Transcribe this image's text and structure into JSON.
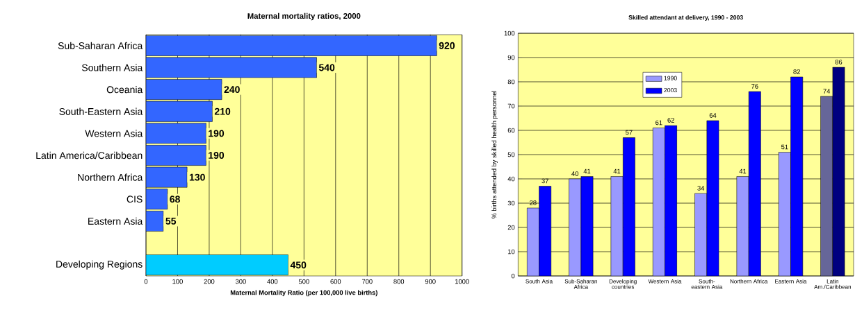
{
  "chart_data": [
    {
      "type": "bar",
      "orientation": "horizontal",
      "title": "Maternal mortality ratios, 2000",
      "xlabel": "Maternal Mortality Ratio (per 100,000 live births)",
      "categories": [
        "Sub-Saharan Africa",
        "Southern Asia",
        "Oceania",
        "South-Eastern Asia",
        "Western Asia",
        "Latin America/Caribbean",
        "Northern Africa",
        "CIS",
        "Eastern Asia",
        null,
        "Developing Regions"
      ],
      "values": [
        920,
        540,
        240,
        210,
        190,
        190,
        130,
        68,
        55,
        null,
        450
      ],
      "colors": [
        "#3366ff",
        "#3366ff",
        "#3366ff",
        "#3366ff",
        "#3366ff",
        "#3366ff",
        "#3366ff",
        "#3366ff",
        "#3366ff",
        null,
        "#00ccff"
      ],
      "xlim": [
        0,
        1000
      ],
      "xticks": [
        0,
        100,
        200,
        300,
        400,
        500,
        600,
        700,
        800,
        900,
        1000
      ],
      "grid": "x",
      "data_labels": true
    },
    {
      "type": "bar",
      "title": "Skilled attendant at delivery, 1990 - 2003",
      "ylabel": "% births attended by skilled health personnel",
      "categories": [
        "South Asia",
        "Sub-Saharan Africa",
        "Developing countries",
        "Western Asia",
        "South-eastern Asia",
        "Northern Africa",
        "Eastern Asia",
        "Latin Am./Caribbean"
      ],
      "series": [
        {
          "name": "1990",
          "color": "#9999ff",
          "colors": [
            "#9999ff",
            "#9999ff",
            "#9999ff",
            "#9999ff",
            "#9999ff",
            "#9999ff",
            "#9999ff",
            "#666699"
          ],
          "values": [
            28,
            40,
            41,
            61,
            34,
            41,
            51,
            74
          ]
        },
        {
          "name": "2003",
          "color": "#0000ff",
          "colors": [
            "#0000ff",
            "#0000ff",
            "#0000ff",
            "#0000ff",
            "#0000ff",
            "#0000ff",
            "#0000ff",
            "#000080"
          ],
          "values": [
            37,
            41,
            57,
            62,
            64,
            76,
            82,
            86
          ]
        }
      ],
      "ylim": [
        0,
        100
      ],
      "yticks": [
        0,
        10,
        20,
        30,
        40,
        50,
        60,
        70,
        80,
        90,
        100
      ],
      "grid": "y",
      "legend": "top",
      "data_labels": true
    }
  ]
}
